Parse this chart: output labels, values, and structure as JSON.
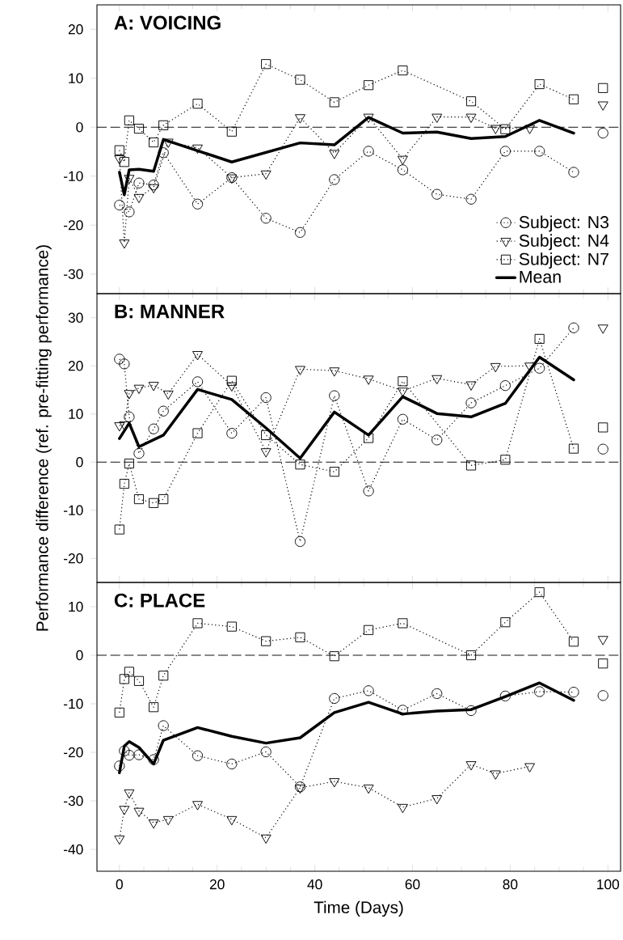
{
  "chart_data": [
    {
      "type": "line",
      "title": "A: VOICING",
      "xlim": [
        -4.6,
        102.6
      ],
      "ylim": [
        -34,
        25
      ],
      "xticks": [
        0,
        20,
        40,
        60,
        80,
        100
      ],
      "yticks": [
        -30,
        -20,
        -10,
        0,
        10,
        20
      ],
      "tick_labels": "y",
      "legend": "bottom right",
      "ref_lines": [
        {
          "axis": "y",
          "value": 0,
          "line_style": "dashed"
        }
      ],
      "series": [
        {
          "name": "Subject: N3",
          "color": "#000000",
          "marker": "circle",
          "line_style": "dotted",
          "x": [
            0,
            2,
            4,
            7,
            9,
            16,
            23,
            30,
            37,
            44,
            51,
            58,
            65,
            72,
            79,
            86,
            93,
            96,
            99
          ],
          "values": [
            -15.9,
            -17.3,
            -11.4,
            -11.8,
            -5.2,
            -15.7,
            -10.3,
            -18.6,
            -21.5,
            -10.7,
            -4.9,
            -8.7,
            -13.7,
            -14.7,
            -4.9,
            -4.9,
            -9.2,
            null,
            -1.2
          ]
        },
        {
          "name": "Subject: N4",
          "color": "#000000",
          "marker": "triangle",
          "line_style": "dotted",
          "x": [
            0,
            1,
            2,
            4,
            7,
            10,
            16,
            23,
            30,
            37,
            44,
            51,
            58,
            65,
            72,
            77,
            84,
            96,
            99
          ],
          "values": [
            -6.4,
            -23.6,
            -10.4,
            -14.3,
            -12.3,
            -3.0,
            -4.2,
            -10.3,
            -9.5,
            2.0,
            -5.3,
            2.1,
            -6.5,
            2.1,
            2.1,
            -0.2,
            -0.2,
            null,
            4.6
          ]
        },
        {
          "name": "Subject: N7",
          "color": "#000000",
          "marker": "square",
          "line_style": "dotted",
          "x": [
            0,
            1,
            2,
            4,
            7,
            9,
            16,
            23,
            30,
            37,
            44,
            51,
            58,
            72,
            79,
            86,
            93,
            96,
            99
          ],
          "values": [
            -4.7,
            -7.1,
            1.4,
            -0.3,
            -3.1,
            0.4,
            4.8,
            -0.9,
            12.9,
            9.7,
            5.1,
            8.6,
            11.6,
            5.3,
            -0.4,
            8.8,
            5.7,
            null,
            8.0
          ]
        },
        {
          "name": "Mean",
          "color": "#000000",
          "marker": "none",
          "line_style": "solid",
          "x": [
            0,
            1,
            2,
            4,
            7,
            9,
            16,
            23,
            37,
            44,
            51,
            58,
            65,
            72,
            79,
            86,
            93
          ],
          "values": [
            -9.2,
            -13.8,
            -8.7,
            -8.6,
            -9.0,
            -2.5,
            -4.8,
            -7.1,
            -3.2,
            -3.6,
            2.0,
            -1.2,
            -1.0,
            -2.3,
            -1.9,
            1.4,
            -1.2
          ]
        }
      ]
    },
    {
      "type": "line",
      "title": "B: MANNER",
      "ylabel": "Performance difference (ref. pre-fitting performance)",
      "xlim": [
        -4.6,
        102.6
      ],
      "ylim": [
        -25,
        35
      ],
      "xticks": [
        0,
        20,
        40,
        60,
        80,
        100
      ],
      "yticks": [
        -20,
        -10,
        0,
        10,
        20,
        30
      ],
      "tick_labels": "y",
      "ref_lines": [
        {
          "axis": "y",
          "value": 0,
          "line_style": "dashed"
        }
      ],
      "series": [
        {
          "color": "#000000",
          "marker": "circle",
          "line_style": "dotted",
          "x": [
            0,
            1,
            2,
            4,
            7,
            9,
            16,
            23,
            30,
            37,
            44,
            51,
            58,
            65,
            72,
            79,
            86,
            93,
            96,
            99
          ],
          "values": [
            21.4,
            20.4,
            9.4,
            1.8,
            6.9,
            10.6,
            16.7,
            6.0,
            13.4,
            -16.5,
            13.8,
            -6.0,
            8.9,
            4.6,
            12.3,
            15.9,
            19.5,
            27.9,
            null,
            2.7
          ]
        },
        {
          "color": "#000000",
          "marker": "triangle",
          "line_style": "dotted",
          "x": [
            0,
            1,
            2,
            4,
            7,
            10,
            16,
            23,
            30,
            37,
            44,
            51,
            58,
            65,
            72,
            77,
            84,
            96,
            99
          ],
          "values": [
            7.6,
            7.8,
            14.3,
            15.4,
            16.0,
            14.2,
            22.4,
            15.9,
            2.2,
            19.3,
            19.0,
            17.3,
            14.8,
            17.4,
            16.1,
            19.9,
            20.0,
            null,
            27.9
          ]
        },
        {
          "color": "#000000",
          "marker": "square",
          "line_style": "dotted",
          "x": [
            0,
            1,
            2,
            4,
            7,
            9,
            16,
            23,
            30,
            37,
            44,
            51,
            58,
            72,
            79,
            86,
            93,
            96,
            99
          ],
          "values": [
            -14.0,
            -4.5,
            -0.3,
            -7.7,
            -8.5,
            -7.7,
            6.0,
            16.9,
            5.6,
            -0.5,
            -2.0,
            5.0,
            16.8,
            -0.7,
            0.5,
            25.6,
            2.8,
            null,
            7.2
          ]
        },
        {
          "color": "#000000",
          "marker": "none",
          "line_style": "solid",
          "x": [
            0,
            2,
            4,
            9,
            16,
            23,
            30,
            37,
            44,
            51,
            58,
            65,
            72,
            79,
            86,
            93
          ],
          "values": [
            4.9,
            8.1,
            3.2,
            5.6,
            15.1,
            13.0,
            7.1,
            0.8,
            10.4,
            5.6,
            13.6,
            10.1,
            9.4,
            12.2,
            21.8,
            17.1
          ]
        }
      ]
    },
    {
      "type": "line",
      "title": "C: PLACE",
      "xlabel": "Time (Days)",
      "xlim": [
        -4.6,
        102.6
      ],
      "ylim": [
        -44.5,
        15
      ],
      "xticks": [
        0,
        20,
        40,
        60,
        80,
        100
      ],
      "yticks": [
        -40,
        -30,
        -20,
        -10,
        0,
        10
      ],
      "ref_lines": [
        {
          "axis": "y",
          "value": 0,
          "line_style": "dashed"
        }
      ],
      "series": [
        {
          "color": "#000000",
          "marker": "circle",
          "line_style": "dotted",
          "x": [
            0,
            1,
            2,
            4,
            7,
            9,
            16,
            23,
            30,
            37,
            44,
            51,
            58,
            65,
            72,
            79,
            86,
            93,
            96,
            99
          ],
          "values": [
            -22.8,
            -19.7,
            -20.6,
            -20.5,
            -21.5,
            -14.5,
            -20.7,
            -22.4,
            -19.9,
            -27.1,
            -8.9,
            -7.3,
            -11.3,
            -7.9,
            -11.4,
            -8.4,
            -7.5,
            -7.6,
            null,
            -8.3
          ]
        },
        {
          "color": "#000000",
          "marker": "triangle",
          "line_style": "dotted",
          "x": [
            0,
            1,
            2,
            4,
            7,
            10,
            16,
            23,
            30,
            37,
            44,
            51,
            58,
            65,
            72,
            77,
            84,
            96,
            99
          ],
          "values": [
            -37.8,
            -31.7,
            -28.3,
            -32.1,
            -34.5,
            -33.8,
            -30.7,
            -33.8,
            -37.6,
            -27.3,
            -26.0,
            -27.3,
            -31.3,
            -29.5,
            -22.5,
            -24.4,
            -22.9,
            null,
            3.3
          ]
        },
        {
          "color": "#000000",
          "marker": "square",
          "line_style": "dotted",
          "x": [
            0,
            1,
            2,
            4,
            7,
            9,
            16,
            23,
            30,
            37,
            44,
            51,
            58,
            72,
            79,
            86,
            93,
            96,
            99
          ],
          "values": [
            -11.8,
            -4.9,
            -3.4,
            -5.3,
            -10.7,
            -4.2,
            6.6,
            5.9,
            2.9,
            3.7,
            -0.2,
            5.2,
            6.6,
            0.0,
            6.8,
            13.0,
            2.8,
            null,
            -1.7
          ]
        },
        {
          "color": "#000000",
          "marker": "none",
          "line_style": "solid",
          "x": [
            0,
            1,
            2,
            4,
            7,
            9,
            16,
            23,
            30,
            37,
            44,
            51,
            58,
            65,
            72,
            79,
            86,
            93
          ],
          "values": [
            -24.2,
            -18.7,
            -17.8,
            -19.0,
            -22.4,
            -17.5,
            -14.9,
            -16.7,
            -18.1,
            -17.0,
            -11.8,
            -9.7,
            -12.1,
            -11.5,
            -11.2,
            -8.5,
            -5.7,
            -9.3
          ]
        }
      ]
    }
  ]
}
